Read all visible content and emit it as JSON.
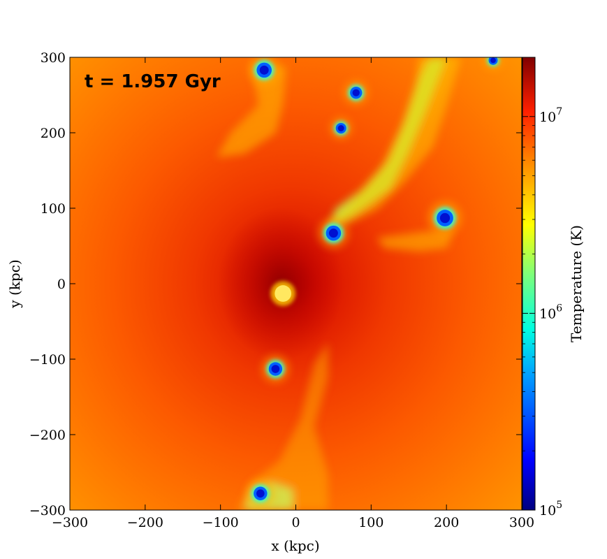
{
  "chart_data": {
    "type": "heatmap",
    "annotation": "t = 1.957 Gyr",
    "xlabel": "x  (kpc)",
    "ylabel": "y  (kpc)",
    "xlim": [
      -300,
      300
    ],
    "ylim": [
      -300,
      300
    ],
    "xticks": [
      -300,
      -200,
      -100,
      0,
      100,
      200,
      300
    ],
    "yticks": [
      -300,
      -200,
      -100,
      0,
      100,
      200,
      300
    ],
    "xtick_labels": [
      "−300",
      "−200",
      "−100",
      "0",
      "100",
      "200",
      "300"
    ],
    "ytick_labels": [
      "−300",
      "−200",
      "−100",
      "0",
      "100",
      "200",
      "300"
    ],
    "colorbar": {
      "label": "Temperature  (K)",
      "scale": "log",
      "range": [
        100000,
        20000000
      ],
      "ticks": [
        100000,
        1000000,
        10000000
      ],
      "tick_labels": [
        {
          "base": "10",
          "exp": "5"
        },
        {
          "base": "10",
          "exp": "6"
        },
        {
          "base": "10",
          "exp": "7"
        }
      ],
      "colormap": "jet"
    },
    "cold_clumps": [
      {
        "x": -42,
        "y": 283,
        "r": 10
      },
      {
        "x": 80,
        "y": 253,
        "r": 8
      },
      {
        "x": 60,
        "y": 206,
        "r": 7
      },
      {
        "x": 50,
        "y": 67,
        "r": 10
      },
      {
        "x": 198,
        "y": 87,
        "r": 11
      },
      {
        "x": -27,
        "y": -113,
        "r": 9
      },
      {
        "x": -47,
        "y": -278,
        "r": 9
      },
      {
        "x": 262,
        "y": 296,
        "r": 6
      }
    ],
    "warm_core": {
      "x": -17,
      "y": -13,
      "r": 11
    },
    "hot_center": {
      "x": -20,
      "y": 0
    }
  }
}
